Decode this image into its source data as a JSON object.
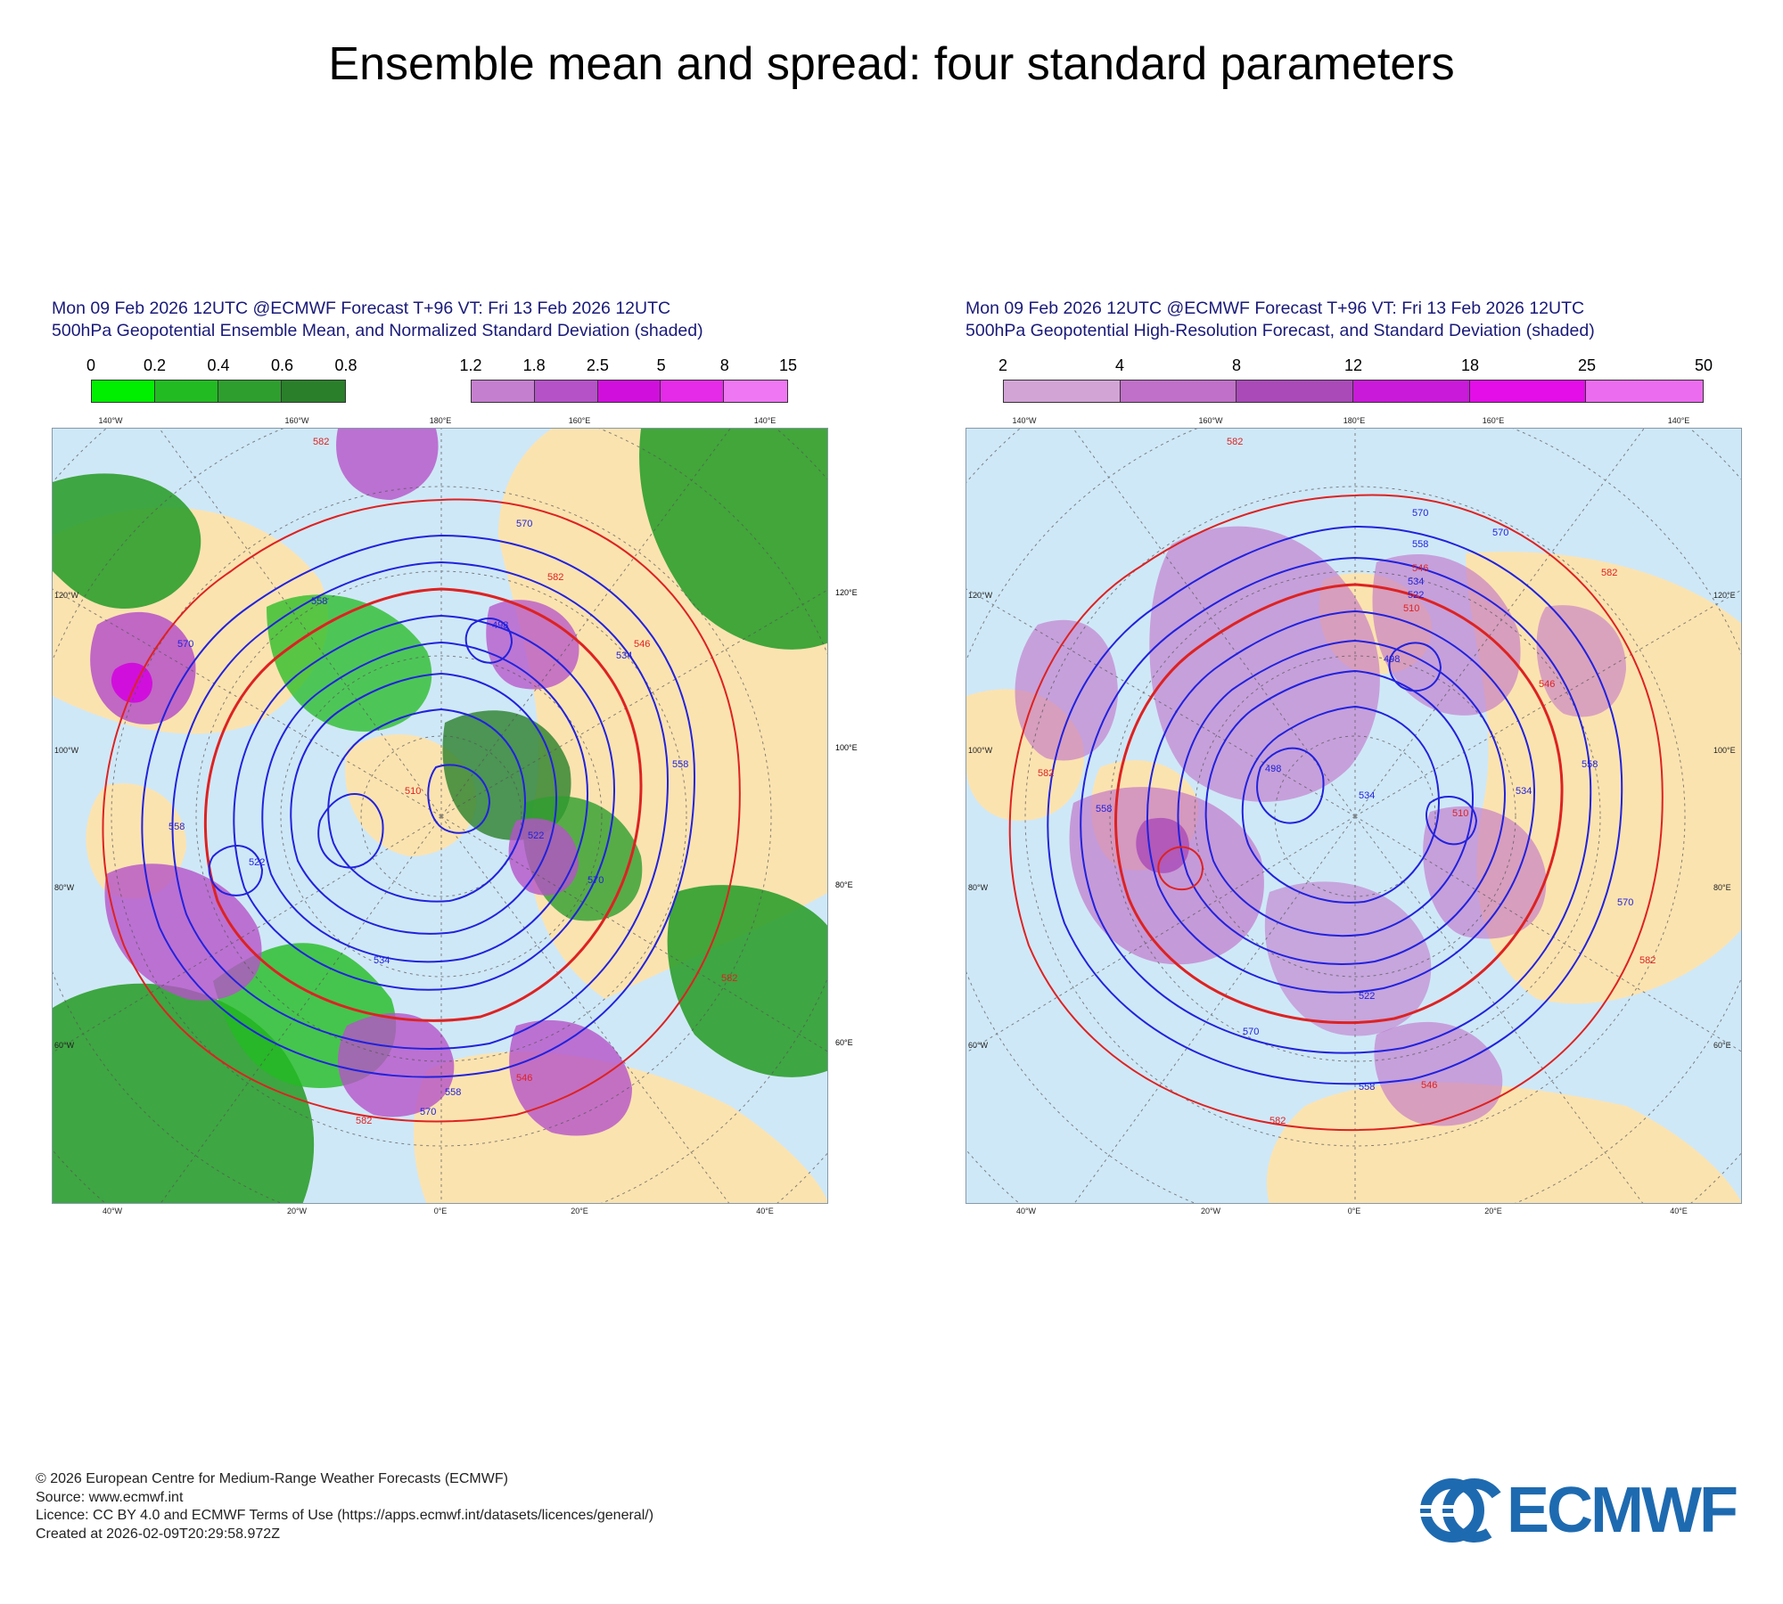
{
  "page": {
    "title": "Ensemble mean and spread: four standard parameters"
  },
  "panels": [
    {
      "title_line1": "Mon 09 Feb 2026 12UTC @ECMWF Forecast T+96 VT: Fri 13 Feb 2026 12UTC",
      "title_line2": "500hPa Geopotential Ensemble Mean, and Normalized Standard Deviation (shaded)",
      "colorbars": [
        {
          "ticks": [
            "0",
            "0.2",
            "0.4",
            "0.6",
            "0.8"
          ],
          "colors": [
            "#00ee00",
            "#22bb22",
            "#2e9e2e",
            "#2a7f2a"
          ]
        },
        {
          "ticks": [
            "1.2",
            "1.8",
            "2.5",
            "5",
            "8",
            "15"
          ],
          "colors": [
            "#c57fcf",
            "#b552c8",
            "#d10fdc",
            "#e52ae8",
            "#ef77f3"
          ]
        }
      ],
      "contour_labels": [
        "582",
        "570",
        "558",
        "546",
        "534",
        "522",
        "510",
        "498"
      ],
      "lon_labels_top": [
        "140°W",
        "160°W",
        "180°E",
        "160°E",
        "140°E"
      ],
      "lon_labels_bottom": [
        "40°W",
        "20°W",
        "0°E",
        "20°E",
        "40°E"
      ],
      "side_labels_left": [
        "120°W",
        "100°W",
        "80°W",
        "60°W"
      ],
      "side_labels_right": [
        "120°E",
        "100°E",
        "80°E",
        "60°E"
      ]
    },
    {
      "title_line1": "Mon 09 Feb 2026 12UTC @ECMWF Forecast T+96 VT: Fri 13 Feb 2026 12UTC",
      "title_line2": "500hPa Geopotential High-Resolution Forecast, and Standard Deviation (shaded)",
      "colorbars": [
        {
          "ticks": [
            "2",
            "4",
            "8",
            "12",
            "18",
            "25",
            "50"
          ],
          "colors": [
            "#d2a4d6",
            "#c070c8",
            "#a94ab8",
            "#c81ad8",
            "#e30ee8",
            "#ec6cf0"
          ]
        }
      ],
      "contour_labels": [
        "582",
        "570",
        "558",
        "546",
        "534",
        "522",
        "510",
        "498"
      ],
      "lon_labels_top": [
        "140°W",
        "160°W",
        "180°E",
        "160°E",
        "140°E"
      ],
      "lon_labels_bottom": [
        "40°W",
        "20°W",
        "0°E",
        "20°E",
        "40°E"
      ],
      "side_labels_left": [
        "120°W",
        "100°W",
        "80°W",
        "60°W"
      ],
      "side_labels_right": [
        "120°E",
        "100°E",
        "80°E",
        "60°E"
      ]
    }
  ],
  "footer": {
    "line1": "© 2026 European Centre for Medium-Range Weather Forecasts (ECMWF)",
    "line2": "Source: www.ecmwf.int",
    "line3": "Licence: CC BY 4.0 and ECMWF Terms of Use (https://apps.ecmwf.int/datasets/licences/general/)",
    "line4": "Created at 2026-02-09T20:29:58.972Z"
  },
  "logo": {
    "text": "ECMWF",
    "color": "#1e6ab0"
  },
  "colors": {
    "ocean": "#cfe8f7",
    "land": "#fbe3b0",
    "high_contour": "#dd2222",
    "low_contour": "#2222dd"
  }
}
